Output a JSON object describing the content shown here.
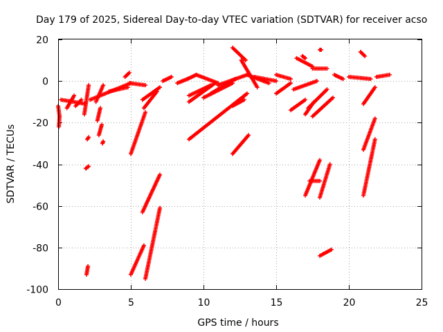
{
  "chart_data": {
    "type": "scatter",
    "title": "Day 179 of 2025, Sidereal Day-to-day VTEC variation (SDTVAR) for receiver acso",
    "xlabel": "GPS time / hours",
    "ylabel": "SDTVAR / TECUs",
    "xlim": [
      0,
      25
    ],
    "ylim": [
      -100,
      20
    ],
    "xticks": [
      0,
      5,
      10,
      15,
      20,
      25
    ],
    "yticks": [
      -100,
      -80,
      -60,
      -40,
      -20,
      0,
      20
    ],
    "xtick_labels": [
      "0",
      "5",
      "10",
      "15",
      "20",
      "25"
    ],
    "ytick_labels": [
      "-100",
      "-80",
      "-60",
      "-40",
      "-20",
      "0",
      "20"
    ],
    "grid": true,
    "marker": "+",
    "marker_color": "#ff0000",
    "series": [
      {
        "name": "SDTVAR",
        "segments": [
          {
            "x": [
              0.0,
              0.1,
              0.05
            ],
            "y": [
              -12,
              -17,
              -22
            ]
          },
          {
            "x": [
              0.2,
              1.9
            ],
            "y": [
              -9,
              -11
            ]
          },
          {
            "x": [
              0.6,
              1.1
            ],
            "y": [
              -13,
              -7
            ]
          },
          {
            "x": [
              1.2,
              1.6
            ],
            "y": [
              -12,
              -9
            ]
          },
          {
            "x": [
              1.8,
              2.1
            ],
            "y": [
              -16,
              -2
            ]
          },
          {
            "x": [
              2.2,
              5.0
            ],
            "y": [
              -9,
              -1
            ]
          },
          {
            "x": [
              2.6,
              3.1
            ],
            "y": [
              -10,
              -2
            ]
          },
          {
            "x": [
              2.7,
              2.9
            ],
            "y": [
              -19,
              -13
            ]
          },
          {
            "x": [
              2.8,
              3.0
            ],
            "y": [
              -26,
              -21
            ]
          },
          {
            "x": [
              2.0,
              2.1
            ],
            "y": [
              -28,
              -27
            ]
          },
          {
            "x": [
              1.9,
              2.1
            ],
            "y": [
              -42,
              -41
            ]
          },
          {
            "x": [
              3.05,
              3.1
            ],
            "y": [
              -30,
              -29
            ]
          },
          {
            "x": [
              1.95,
              2.05
            ],
            "y": [
              -93,
              -89
            ]
          },
          {
            "x": [
              3.5,
              4.8
            ],
            "y": [
              -5,
              -3
            ]
          },
          {
            "x": [
              4.6,
              4.9
            ],
            "y": [
              2,
              4
            ]
          },
          {
            "x": [
              4.9,
              6.0
            ],
            "y": [
              -1,
              -2
            ]
          },
          {
            "x": [
              5.0,
              6.0
            ],
            "y": [
              -35,
              -15
            ]
          },
          {
            "x": [
              5.8,
              7.0
            ],
            "y": [
              -63,
              -45
            ]
          },
          {
            "x": [
              5.0,
              5.9
            ],
            "y": [
              -93,
              -79
            ]
          },
          {
            "x": [
              6.0,
              7.0
            ],
            "y": [
              -95,
              -61
            ]
          },
          {
            "x": [
              5.8,
              7.0
            ],
            "y": [
              -9,
              -3
            ]
          },
          {
            "x": [
              5.9,
              6.8
            ],
            "y": [
              -13,
              -5
            ]
          },
          {
            "x": [
              7.2,
              7.8
            ],
            "y": [
              0,
              2
            ]
          },
          {
            "x": [
              8.2,
              8.9
            ],
            "y": [
              -1,
              1
            ]
          },
          {
            "x": [
              8.9,
              9.5
            ],
            "y": [
              1,
              3
            ]
          },
          {
            "x": [
              9.0,
              13.0
            ],
            "y": [
              -28,
              -6
            ]
          },
          {
            "x": [
              9.0,
              10.8
            ],
            "y": [
              -10,
              -1
            ]
          },
          {
            "x": [
              9.0,
              10.5
            ],
            "y": [
              -7,
              -2
            ]
          },
          {
            "x": [
              9.5,
              11.0
            ],
            "y": [
              3,
              -1
            ]
          },
          {
            "x": [
              10.0,
              12.0
            ],
            "y": [
              -8,
              -1
            ]
          },
          {
            "x": [
              10.5,
              12.2
            ],
            "y": [
              -6,
              1
            ]
          },
          {
            "x": [
              11.0,
              13.0
            ],
            "y": [
              -2,
              3
            ]
          },
          {
            "x": [
              12.0,
              13.1
            ],
            "y": [
              -35,
              -26
            ]
          },
          {
            "x": [
              12.0,
              12.8
            ],
            "y": [
              -12,
              -9
            ]
          },
          {
            "x": [
              12.0,
              12.9
            ],
            "y": [
              16,
              10
            ]
          },
          {
            "x": [
              12.6,
              13.7
            ],
            "y": [
              10,
              -3
            ]
          },
          {
            "x": [
              13.0,
              14.5
            ],
            "y": [
              3,
              -1
            ]
          },
          {
            "x": [
              13.5,
              15.0
            ],
            "y": [
              2,
              0
            ]
          },
          {
            "x": [
              15.0,
              16.0
            ],
            "y": [
              3,
              1
            ]
          },
          {
            "x": [
              15.0,
              16.0
            ],
            "y": [
              -6,
              -1
            ]
          },
          {
            "x": [
              16.0,
              17.0
            ],
            "y": [
              -14,
              -9
            ]
          },
          {
            "x": [
              16.2,
              17.8
            ],
            "y": [
              -4,
              0
            ]
          },
          {
            "x": [
              16.4,
              17.5
            ],
            "y": [
              11,
              7
            ]
          },
          {
            "x": [
              16.8,
              17.0
            ],
            "y": [
              12,
              11
            ]
          },
          {
            "x": [
              17.5,
              18.5
            ],
            "y": [
              6,
              6
            ]
          },
          {
            "x": [
              17.0,
              17.6
            ],
            "y": [
              -16,
              -10
            ]
          },
          {
            "x": [
              17.2,
              18.5
            ],
            "y": [
              -13,
              -4
            ]
          },
          {
            "x": [
              17.5,
              18.9
            ],
            "y": [
              -17,
              -8
            ]
          },
          {
            "x": [
              17.0,
              18.0
            ],
            "y": [
              -55,
              -38
            ]
          },
          {
            "x": [
              17.3,
              18.0
            ],
            "y": [
              -48,
              -48
            ]
          },
          {
            "x": [
              18.0,
              18.7
            ],
            "y": [
              -56,
              -40
            ]
          },
          {
            "x": [
              18.0,
              18.8
            ],
            "y": [
              -84,
              -81
            ]
          },
          {
            "x": [
              18.0,
              18.1
            ],
            "y": [
              15,
              15
            ]
          },
          {
            "x": [
              19.0,
              19.6
            ],
            "y": [
              3,
              1
            ]
          },
          {
            "x": [
              20.0,
              21.5
            ],
            "y": [
              2,
              1
            ]
          },
          {
            "x": [
              20.8,
              21.1
            ],
            "y": [
              14,
              12
            ]
          },
          {
            "x": [
              21.0,
              21.8
            ],
            "y": [
              -11,
              -3
            ]
          },
          {
            "x": [
              21.0,
              21.8
            ],
            "y": [
              -33,
              -18
            ]
          },
          {
            "x": [
              21.0,
              21.8
            ],
            "y": [
              -55,
              -28
            ]
          },
          {
            "x": [
              21.9,
              22.8
            ],
            "y": [
              2,
              3
            ]
          }
        ]
      }
    ]
  }
}
